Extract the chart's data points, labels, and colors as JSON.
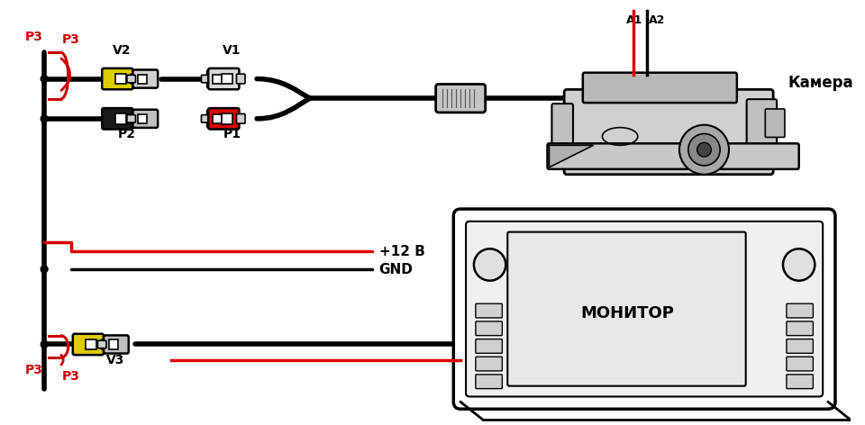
{
  "bg_color": "#ffffff",
  "line_color": "#000000",
  "red_color": "#dd0000",
  "yellow_color": "#ddcc00",
  "gray_color": "#c0c0c0",
  "dark_gray": "#555555",
  "label_color_red": "#cc0000",
  "label_color_black": "#000000",
  "labels": {
    "P3_top": "P3",
    "P3_bottom": "P3",
    "V1": "V1",
    "V2": "V2",
    "V3": "V3",
    "P1": "P1",
    "P2": "P2",
    "A1": "A1",
    "A2": "A2",
    "camera": "Камера",
    "monitor": "МОНИТОР",
    "plus12v": "+12 В",
    "gnd": "GND"
  },
  "figsize": [
    9.6,
    4.72
  ],
  "dpi": 100
}
